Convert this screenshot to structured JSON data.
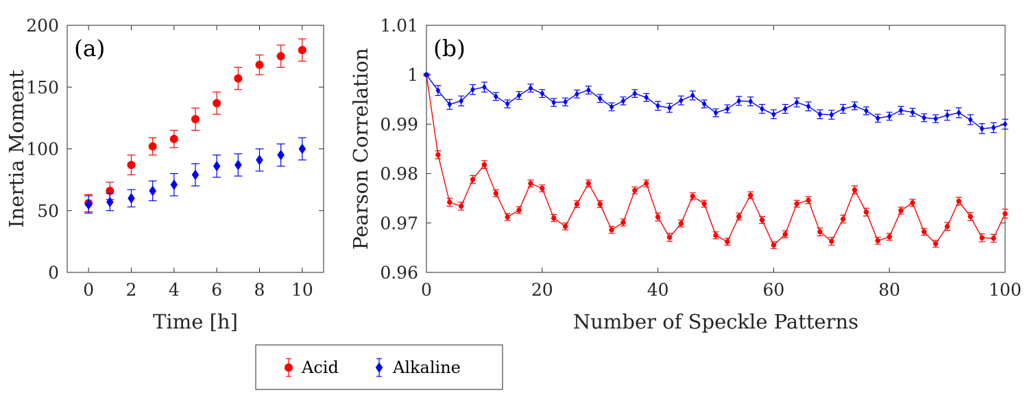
{
  "chart_data": [
    {
      "type": "scatter",
      "panel_label": "(a)",
      "xlabel": "Time [h]",
      "ylabel": "Inertia Moment",
      "xlim": [
        -1,
        11
      ],
      "ylim": [
        0,
        200
      ],
      "xticks": [
        0,
        2,
        4,
        6,
        8,
        10
      ],
      "yticks": [
        0,
        50,
        100,
        150,
        200
      ],
      "series": [
        {
          "name": "Acid",
          "color": "#ff0000",
          "marker": "circle",
          "x": [
            0,
            1,
            2,
            3,
            4,
            5,
            6,
            7,
            8,
            9,
            10
          ],
          "y": [
            56,
            66,
            87,
            102,
            108,
            124,
            137,
            157,
            168,
            175,
            180
          ],
          "err": [
            7,
            7,
            8,
            7,
            7,
            9,
            9,
            9,
            8,
            9,
            9
          ]
        },
        {
          "name": "Alkaline",
          "color": "#0000ff",
          "marker": "diamond",
          "x": [
            0,
            1,
            2,
            3,
            4,
            5,
            6,
            7,
            8,
            9,
            10
          ],
          "y": [
            55,
            57,
            60,
            66,
            71,
            79,
            86,
            87,
            91,
            95,
            100
          ],
          "err": [
            7,
            7,
            7,
            8,
            9,
            9,
            9,
            9,
            9,
            9,
            9
          ]
        }
      ]
    },
    {
      "type": "line",
      "panel_label": "(b)",
      "xlabel": "Number of Speckle Patterns",
      "ylabel": "Pearson Correlation",
      "xlim": [
        0,
        100
      ],
      "ylim": [
        0.96,
        1.01
      ],
      "xticks": [
        0,
        20,
        40,
        60,
        80,
        100
      ],
      "yticks": [
        0.96,
        0.97,
        0.98,
        0.99,
        1,
        1.01
      ],
      "ytick_labels": [
        "0.96",
        "0.97",
        "0.98",
        "0.99",
        "1",
        "1.01"
      ],
      "series": [
        {
          "name": "Acid",
          "color": "#ff0000",
          "marker": "circle",
          "x": [
            0,
            2,
            4,
            6,
            8,
            10,
            12,
            14,
            16,
            18,
            20,
            22,
            24,
            26,
            28,
            30,
            32,
            34,
            36,
            38,
            40,
            42,
            44,
            46,
            48,
            50,
            52,
            54,
            56,
            58,
            60,
            62,
            64,
            66,
            68,
            70,
            72,
            74,
            76,
            78,
            80,
            82,
            84,
            86,
            88,
            90,
            92,
            94,
            96,
            98,
            100
          ],
          "y": [
            1.0,
            0.9838,
            0.9742,
            0.9734,
            0.9788,
            0.9818,
            0.976,
            0.9712,
            0.9726,
            0.978,
            0.977,
            0.971,
            0.9693,
            0.9738,
            0.978,
            0.9738,
            0.9686,
            0.9701,
            0.9766,
            0.978,
            0.9712,
            0.9671,
            0.9699,
            0.9754,
            0.9739,
            0.9675,
            0.9662,
            0.9713,
            0.9756,
            0.9706,
            0.9655,
            0.9677,
            0.9739,
            0.9746,
            0.9682,
            0.9663,
            0.9708,
            0.9767,
            0.9722,
            0.9664,
            0.9672,
            0.9725,
            0.9741,
            0.9682,
            0.9658,
            0.9693,
            0.9744,
            0.9713,
            0.967,
            0.9669,
            0.9719
          ],
          "err": [
            0.0002,
            0.0008,
            0.0008,
            0.0008,
            0.0008,
            0.0008,
            0.0007,
            0.0007,
            0.0007,
            0.0007,
            0.0007,
            0.0007,
            0.0007,
            0.0007,
            0.0007,
            0.0007,
            0.0007,
            0.0007,
            0.0007,
            0.0007,
            0.0008,
            0.0008,
            0.0007,
            0.0007,
            0.0007,
            0.0007,
            0.0007,
            0.0007,
            0.0007,
            0.0007,
            0.0007,
            0.0007,
            0.0007,
            0.0007,
            0.0008,
            0.0008,
            0.0008,
            0.0008,
            0.0008,
            0.0007,
            0.0007,
            0.0007,
            0.0007,
            0.0007,
            0.0007,
            0.0008,
            0.0008,
            0.0008,
            0.0008,
            0.0008,
            0.0009
          ]
        },
        {
          "name": "Alkaline",
          "color": "#0000ff",
          "marker": "diamond",
          "x": [
            0,
            2,
            4,
            6,
            8,
            10,
            12,
            14,
            16,
            18,
            20,
            22,
            24,
            26,
            28,
            30,
            32,
            34,
            36,
            38,
            40,
            42,
            44,
            46,
            48,
            50,
            52,
            54,
            56,
            58,
            60,
            62,
            64,
            66,
            68,
            70,
            72,
            74,
            76,
            78,
            80,
            82,
            84,
            86,
            88,
            90,
            92,
            94,
            96,
            98,
            100
          ],
          "y": [
            1.0,
            0.9968,
            0.994,
            0.9947,
            0.997,
            0.9975,
            0.9956,
            0.9941,
            0.9958,
            0.9973,
            0.9962,
            0.9944,
            0.9945,
            0.9961,
            0.9969,
            0.9952,
            0.9935,
            0.9947,
            0.9962,
            0.9954,
            0.9937,
            0.9933,
            0.9948,
            0.9958,
            0.9941,
            0.9923,
            0.9931,
            0.9947,
            0.9946,
            0.9931,
            0.992,
            0.9931,
            0.9944,
            0.9936,
            0.992,
            0.9919,
            0.9931,
            0.9937,
            0.9927,
            0.9912,
            0.9916,
            0.9928,
            0.9924,
            0.9913,
            0.9911,
            0.9918,
            0.9923,
            0.9909,
            0.9891,
            0.9893,
            0.99
          ],
          "err": [
            0.0002,
            0.001,
            0.001,
            0.001,
            0.001,
            0.001,
            0.0008,
            0.0008,
            0.0008,
            0.0008,
            0.0008,
            0.0008,
            0.0008,
            0.0008,
            0.0008,
            0.0008,
            0.0008,
            0.0008,
            0.0008,
            0.0008,
            0.0009,
            0.0009,
            0.0009,
            0.0009,
            0.0008,
            0.0008,
            0.0008,
            0.0009,
            0.0009,
            0.0009,
            0.0009,
            0.0009,
            0.0009,
            0.0009,
            0.0009,
            0.0009,
            0.0009,
            0.0008,
            0.0008,
            0.0008,
            0.0008,
            0.0008,
            0.0008,
            0.0008,
            0.0008,
            0.001,
            0.001,
            0.001,
            0.001,
            0.001,
            0.001
          ]
        }
      ]
    }
  ],
  "legend": {
    "items": [
      {
        "label": "Acid",
        "color": "#ff0000",
        "marker": "circle"
      },
      {
        "label": "Alkaline",
        "color": "#0000ff",
        "marker": "diamond"
      }
    ]
  }
}
